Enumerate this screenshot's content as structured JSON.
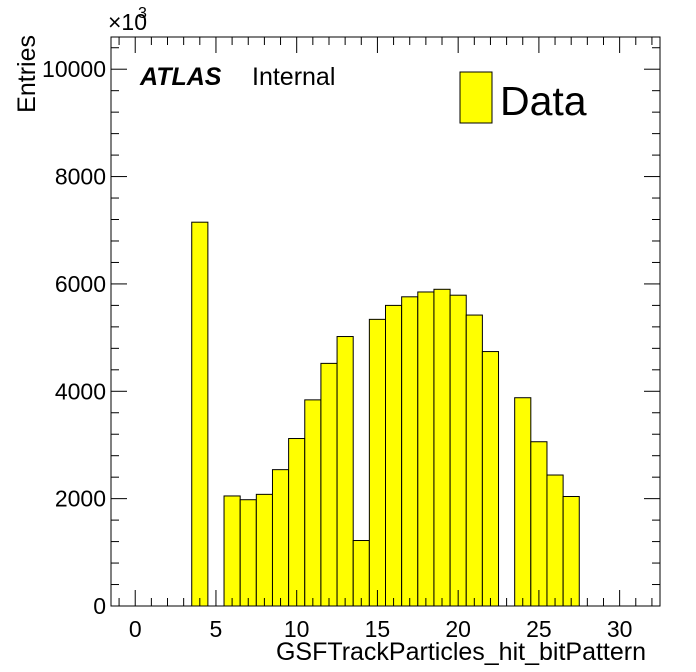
{
  "chart_data": {
    "type": "bar",
    "title": "",
    "xlabel": "GSFTrackParticles_hit_bitPattern",
    "ylabel": "Entries",
    "y_multiplier_label": "×10",
    "y_multiplier_exponent": "3",
    "xlim": [
      -1.5,
      32.5
    ],
    "ylim": [
      0,
      10600
    ],
    "x_ticks": [
      0,
      5,
      10,
      15,
      20,
      25,
      30
    ],
    "y_ticks": [
      0,
      2000,
      4000,
      6000,
      8000,
      10000
    ],
    "grid": false,
    "legend_position": "top-right",
    "series": [
      {
        "name": "Data",
        "color": "#ffff00",
        "bin_width": 1,
        "bin_lefts": [
          3.5,
          5.5,
          6.5,
          7.5,
          8.5,
          9.5,
          10.5,
          11.5,
          12.5,
          13.5,
          14.5,
          15.5,
          16.5,
          17.5,
          18.5,
          19.5,
          20.5,
          21.5,
          23.5,
          24.5,
          25.5,
          26.5
        ],
        "values": [
          7150,
          2050,
          1980,
          2080,
          2540,
          3120,
          3840,
          4520,
          5020,
          1220,
          5340,
          5600,
          5760,
          5850,
          5900,
          5790,
          5420,
          4740,
          3880,
          3060,
          2440,
          2040
        ]
      }
    ],
    "labels": {
      "atlas": "ATLAS",
      "internal": "Internal"
    },
    "legend": {
      "entry": "Data"
    }
  }
}
